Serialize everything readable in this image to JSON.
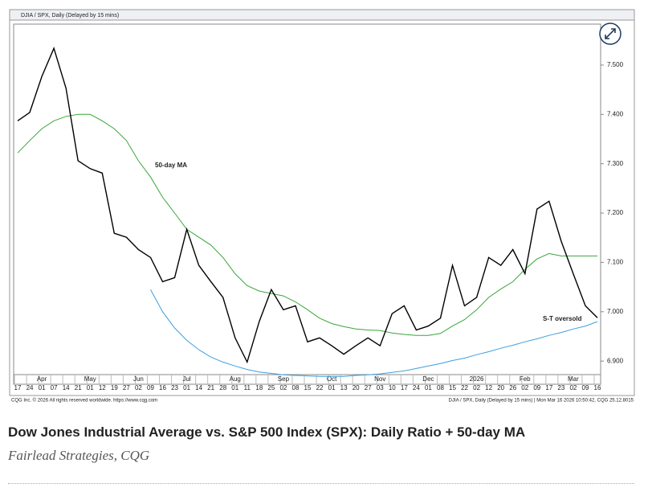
{
  "chart_data": {
    "type": "line",
    "header": "DJIA / SPX, Daily (Delayed by 15 mins)",
    "annotations": [
      "50-day MA",
      "S-T oversold"
    ],
    "footer_left": "CQG Inc. © 2026 All rights reserved worldwide. https://www.cqg.com",
    "footer_right": "DJIA / SPX, Daily (Delayed by 15 mins) | Mon Mar 16 2026 10:50:42, CQG 25.12.8015",
    "caption": "Dow Jones Industrial Average vs. S&P 500 Index (SPX): Daily Ratio + 50-day MA",
    "source": "Fairlead Strategies, CQG",
    "categories": [
      "17",
      "24",
      "01",
      "07",
      "14",
      "21",
      "01",
      "12",
      "19",
      "27",
      "02",
      "09",
      "16",
      "23",
      "01",
      "14",
      "21",
      "28",
      "01",
      "11",
      "18",
      "25",
      "02",
      "08",
      "15",
      "22",
      "01",
      "13",
      "20",
      "27",
      "03",
      "10",
      "17",
      "24",
      "01",
      "08",
      "15",
      "22",
      "02",
      "12",
      "20",
      "26",
      "02",
      "09",
      "17",
      "23",
      "02",
      "09",
      "16"
    ],
    "months": [
      null,
      null,
      "Apr",
      null,
      null,
      null,
      "May",
      null,
      null,
      null,
      "Jun",
      null,
      null,
      null,
      "Jul",
      null,
      null,
      null,
      "Aug",
      null,
      null,
      null,
      "Sep",
      null,
      null,
      null,
      "Oct",
      null,
      null,
      null,
      "Nov",
      null,
      null,
      null,
      "Dec",
      null,
      null,
      null,
      "2026",
      null,
      null,
      null,
      "Feb",
      null,
      null,
      null,
      "Mar",
      null,
      null
    ],
    "series": [
      {
        "color": "#000000",
        "values": [
          7.387,
          7.404,
          7.477,
          7.534,
          7.453,
          7.306,
          7.29,
          7.281,
          7.159,
          7.151,
          7.126,
          7.11,
          7.061,
          7.069,
          7.167,
          7.094,
          7.061,
          7.029,
          6.947,
          6.898,
          6.98,
          7.045,
          7.004,
          7.012,
          6.939,
          6.947,
          6.931,
          6.914,
          6.931,
          6.947,
          6.931,
          6.996,
          7.012,
          6.963,
          6.971,
          6.987,
          7.094,
          7.012,
          7.029,
          7.11,
          7.094,
          7.126,
          7.077,
          7.208,
          7.224,
          7.143,
          7.077,
          7.012,
          6.988
        ]
      },
      {
        "color": "#3aa53a",
        "values": [
          7.322,
          7.347,
          7.371,
          7.387,
          7.396,
          7.4,
          7.4,
          7.387,
          7.371,
          7.347,
          7.306,
          7.273,
          7.232,
          7.2,
          7.167,
          7.151,
          7.135,
          7.11,
          7.077,
          7.053,
          7.042,
          7.037,
          7.032,
          7.02,
          7.004,
          6.987,
          6.976,
          6.97,
          6.965,
          6.963,
          6.962,
          6.957,
          6.954,
          6.952,
          6.952,
          6.956,
          6.971,
          6.984,
          7.004,
          7.029,
          7.046,
          7.061,
          7.086,
          7.107,
          7.118,
          7.113,
          7.113,
          7.113,
          7.113
        ]
      },
      {
        "color": "#3b9fe0",
        "values": [
          null,
          null,
          null,
          null,
          null,
          null,
          null,
          null,
          null,
          null,
          null,
          7.045,
          7.0,
          6.967,
          6.942,
          6.923,
          6.908,
          6.898,
          6.89,
          6.883,
          6.878,
          6.875,
          6.872,
          6.871,
          6.87,
          6.869,
          6.869,
          6.869,
          6.871,
          6.872,
          6.874,
          6.877,
          6.88,
          6.885,
          6.89,
          6.895,
          6.901,
          6.906,
          6.913,
          6.919,
          6.926,
          6.932,
          6.939,
          6.945,
          6.952,
          6.958,
          6.965,
          6.971,
          6.98
        ]
      }
    ],
    "ylim": [
      6.853,
      7.583
    ],
    "yticks": [
      {
        "value": 6.9,
        "label": "6.900"
      },
      {
        "value": 7.0,
        "label": "7.000"
      },
      {
        "value": 7.1,
        "label": "7.100"
      },
      {
        "value": 7.2,
        "label": "7.200"
      },
      {
        "value": 7.3,
        "label": "7.300"
      },
      {
        "value": 7.4,
        "label": "7.400"
      },
      {
        "value": 7.5,
        "label": "7.500"
      }
    ]
  }
}
